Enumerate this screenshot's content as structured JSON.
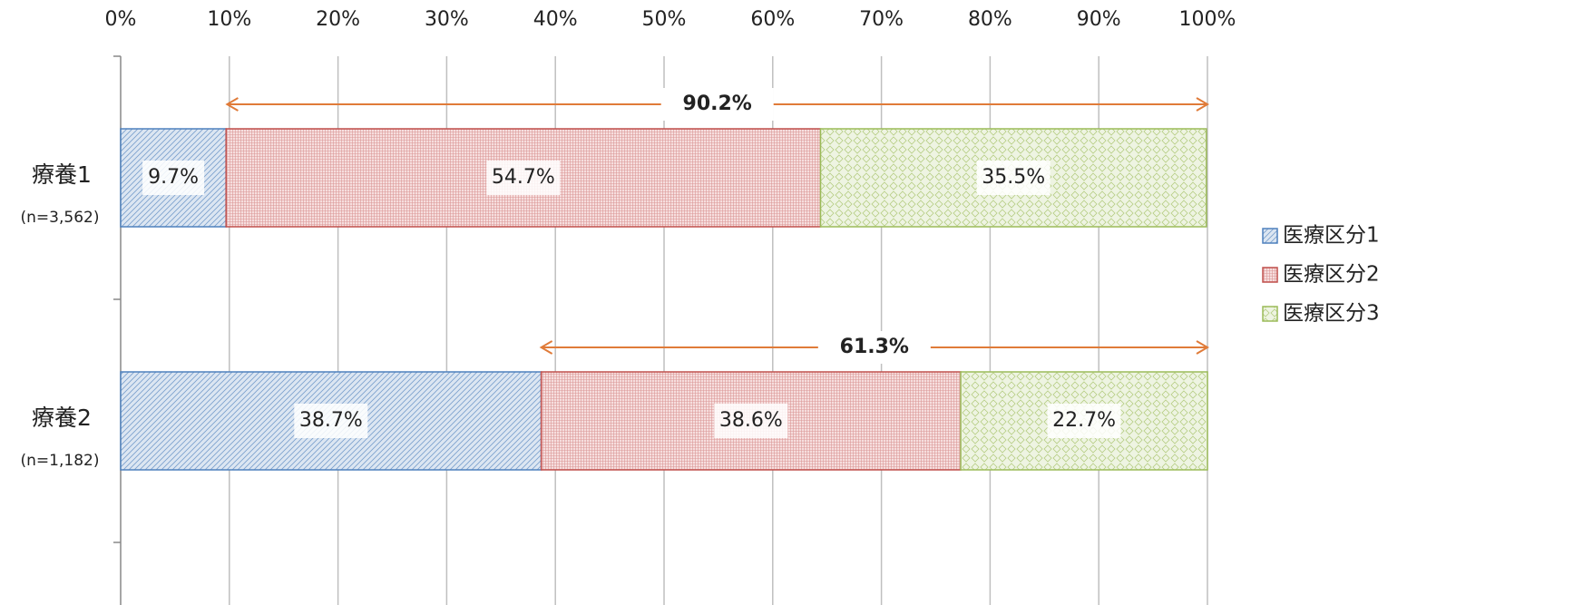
{
  "chart_data": {
    "type": "stacked_bar_horizontal",
    "categories": [
      "療養1",
      "療養2"
    ],
    "category_notes": [
      "(n=3,562)",
      "(n=1,182)"
    ],
    "series": [
      {
        "name": "医療区分1",
        "color": "#4f81bd",
        "values": [
          9.7,
          38.7
        ],
        "value_labels": [
          "9.7%",
          "38.7%"
        ]
      },
      {
        "name": "医療区分2",
        "color": "#c0504d",
        "values": [
          54.7,
          38.6
        ],
        "value_labels": [
          "54.7%",
          "38.6%"
        ]
      },
      {
        "name": "医療区分3",
        "color": "#9bbb59",
        "values": [
          35.5,
          22.7
        ],
        "value_labels": [
          "35.5%",
          "22.7%"
        ]
      }
    ],
    "annotations": [
      {
        "value": 90.2,
        "label": "90.2%"
      },
      {
        "value": 61.3,
        "label": "61.3%"
      }
    ],
    "annotation_color": "#e07b39",
    "xlim": [
      0,
      100
    ],
    "xticks": [
      {
        "value": 0,
        "label": "0%"
      },
      {
        "value": 10,
        "label": "10%"
      },
      {
        "value": 20,
        "label": "20%"
      },
      {
        "value": 30,
        "label": "30%"
      },
      {
        "value": 40,
        "label": "40%"
      },
      {
        "value": 50,
        "label": "50%"
      },
      {
        "value": 60,
        "label": "60%"
      },
      {
        "value": 70,
        "label": "70%"
      },
      {
        "value": 80,
        "label": "80%"
      },
      {
        "value": 90,
        "label": "90%"
      },
      {
        "value": 100,
        "label": "100%"
      }
    ],
    "grid": true,
    "legend": "right"
  }
}
